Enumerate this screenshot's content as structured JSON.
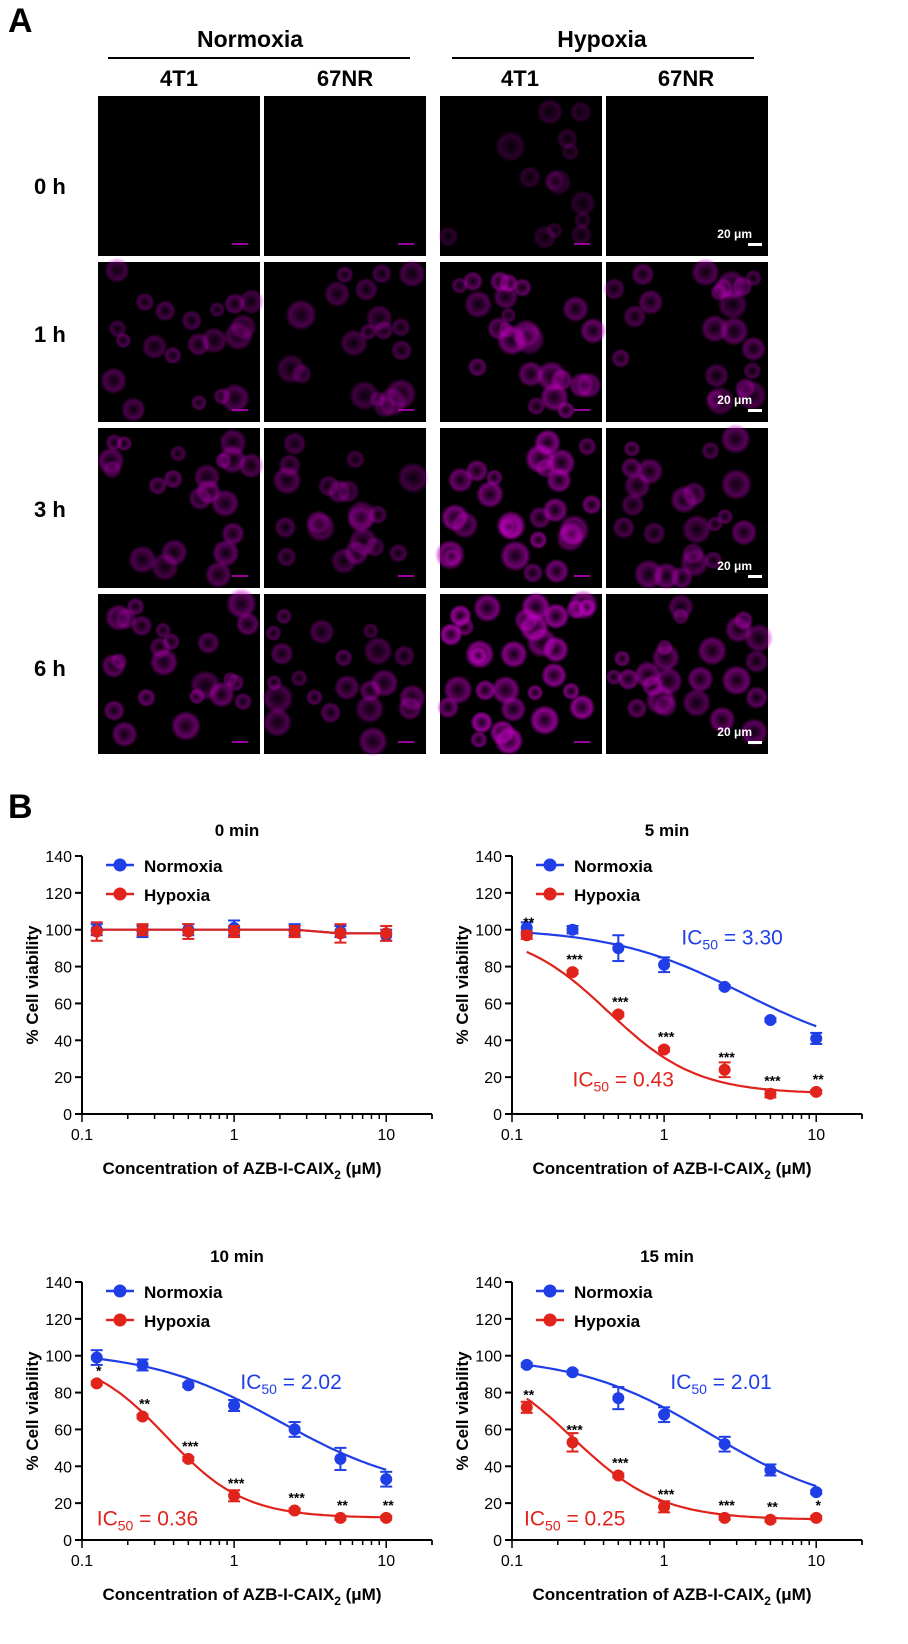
{
  "panel_a": {
    "letter": "A",
    "conditions": [
      "Normoxia",
      "Hypoxia"
    ],
    "cell_lines": [
      "4T1",
      "67NR",
      "4T1",
      "67NR"
    ],
    "times": [
      "0 h",
      "1 h",
      "3 h",
      "6 h"
    ],
    "scale_bar": "20 μm",
    "stain_color": "#c000c0",
    "intensity": [
      [
        0.0,
        0.0,
        0.02,
        0.0
      ],
      [
        0.35,
        0.3,
        0.6,
        0.45
      ],
      [
        0.45,
        0.35,
        0.8,
        0.5
      ],
      [
        0.55,
        0.45,
        1.0,
        0.6
      ]
    ]
  },
  "panel_b": {
    "letter": "B",
    "colors": {
      "normoxia": "#1f3ee6",
      "hypoxia": "#e0241c",
      "axis": "#000000"
    }
  },
  "chart_data": [
    {
      "type": "scatter",
      "title": "0 min",
      "xlabel": "Concentration of AZB-I-CAIX",
      "xlabel_sub": "2",
      "xlabel_unit": " (μM)",
      "ylabel": "% Cell viability",
      "xscale": "log",
      "xlim": [
        0.1,
        20
      ],
      "ylim": [
        0,
        140
      ],
      "xticks": [
        "0.1",
        "1",
        "10"
      ],
      "yticks": [
        0,
        20,
        40,
        60,
        80,
        100,
        120,
        140
      ],
      "legend_position": "top-left",
      "series": [
        {
          "name": "Normoxia",
          "color": "#1f3ee6",
          "x": [
            0.125,
            0.25,
            0.5,
            1,
            2.5,
            5,
            10
          ],
          "y": [
            100,
            99,
            100,
            101,
            100,
            99,
            97
          ],
          "err": [
            3,
            3,
            3,
            4,
            3,
            3,
            3
          ],
          "curve": [
            100,
            100,
            100,
            100,
            100,
            98,
            98
          ]
        },
        {
          "name": "Hypoxia",
          "color": "#e0241c",
          "x": [
            0.125,
            0.25,
            0.5,
            1,
            2.5,
            5,
            10
          ],
          "y": [
            99,
            100,
            99,
            99,
            99,
            98,
            98
          ],
          "err": [
            5,
            3,
            4,
            3,
            3,
            5,
            4
          ],
          "curve": [
            100,
            100,
            100,
            100,
            100,
            98,
            98
          ]
        }
      ],
      "significance": [],
      "ic50_labels": []
    },
    {
      "type": "scatter",
      "title": "5 min",
      "xlabel": "Concentration of AZB-I-CAIX",
      "xlabel_sub": "2",
      "xlabel_unit": " (μM)",
      "ylabel": "% Cell viability",
      "xscale": "log",
      "xlim": [
        0.1,
        20
      ],
      "ylim": [
        0,
        140
      ],
      "xticks": [
        "0.1",
        "1",
        "10"
      ],
      "yticks": [
        0,
        20,
        40,
        60,
        80,
        100,
        120,
        140
      ],
      "legend_position": "top-left",
      "series": [
        {
          "name": "Normoxia",
          "color": "#1f3ee6",
          "x": [
            0.125,
            0.25,
            0.5,
            1,
            2.5,
            5,
            10
          ],
          "y": [
            101,
            100,
            90,
            81,
            69,
            51,
            41
          ],
          "err": [
            3,
            2,
            7,
            4,
            1,
            1,
            3
          ],
          "ic50": 3.3,
          "top": 101,
          "bottom": 30,
          "hill": 1.0
        },
        {
          "name": "Hypoxia",
          "color": "#e0241c",
          "x": [
            0.125,
            0.25,
            0.5,
            1,
            2.5,
            5,
            10
          ],
          "y": [
            97,
            77,
            54,
            35,
            24,
            11,
            12
          ],
          "err": [
            2,
            1,
            1,
            1,
            4,
            2,
            1
          ],
          "ic50": 0.43,
          "top": 100,
          "bottom": 11,
          "hill": 1.5
        }
      ],
      "significance": [
        {
          "x": 0.125,
          "label": "**"
        },
        {
          "x": 0.25,
          "label": "***"
        },
        {
          "x": 0.5,
          "label": "***"
        },
        {
          "x": 1,
          "label": "***"
        },
        {
          "x": 2.5,
          "label": "***"
        },
        {
          "x": 5,
          "label": "***"
        },
        {
          "x": 10,
          "label": "**"
        }
      ],
      "ic50_labels": [
        {
          "series": "Normoxia",
          "prefix": "IC",
          "sub": "50",
          "text": " = 3.30",
          "x": 1.3,
          "y": 92
        },
        {
          "series": "Hypoxia",
          "prefix": "IC",
          "sub": "50",
          "text": " = 0.43",
          "x": 0.25,
          "y": 15
        }
      ]
    },
    {
      "type": "scatter",
      "title": "10 min",
      "xlabel": "Concentration of AZB-I-CAIX",
      "xlabel_sub": "2",
      "xlabel_unit": " (μM)",
      "ylabel": "% Cell viability",
      "xscale": "log",
      "xlim": [
        0.1,
        20
      ],
      "ylim": [
        0,
        140
      ],
      "xticks": [
        "0.1",
        "1",
        "10"
      ],
      "yticks": [
        0,
        20,
        40,
        60,
        80,
        100,
        120,
        140
      ],
      "legend_position": "top-left",
      "series": [
        {
          "name": "Normoxia",
          "color": "#1f3ee6",
          "x": [
            0.125,
            0.25,
            0.5,
            1,
            2.5,
            5,
            10
          ],
          "y": [
            99,
            95,
            84,
            73,
            60,
            44,
            33
          ],
          "err": [
            4,
            3,
            1,
            3,
            4,
            6,
            4
          ],
          "ic50": 2.02,
          "top": 103,
          "bottom": 25,
          "hill": 1.0
        },
        {
          "name": "Hypoxia",
          "color": "#e0241c",
          "x": [
            0.125,
            0.25,
            0.5,
            1,
            2.5,
            5,
            10
          ],
          "y": [
            85,
            67,
            44,
            24,
            16,
            12,
            12
          ],
          "err": [
            1,
            1,
            1,
            3,
            1,
            1,
            1
          ],
          "ic50": 0.36,
          "top": 100,
          "bottom": 12,
          "hill": 1.7
        }
      ],
      "significance": [
        {
          "x": 0.125,
          "label": "*"
        },
        {
          "x": 0.25,
          "label": "**"
        },
        {
          "x": 0.5,
          "label": "***"
        },
        {
          "x": 1,
          "label": "***"
        },
        {
          "x": 2.5,
          "label": "***"
        },
        {
          "x": 5,
          "label": "**"
        },
        {
          "x": 10,
          "label": "**"
        }
      ],
      "ic50_labels": [
        {
          "series": "Normoxia",
          "prefix": "IC",
          "sub": "50",
          "text": " = 2.02",
          "x": 1.1,
          "y": 82
        },
        {
          "series": "Hypoxia",
          "prefix": "IC",
          "sub": "50",
          "text": " = 0.36",
          "x": 0.125,
          "y": 8
        }
      ]
    },
    {
      "type": "scatter",
      "title": "15 min",
      "xlabel": "Concentration of AZB-I-CAIX",
      "xlabel_sub": "2",
      "xlabel_unit": " (μM)",
      "ylabel": "% Cell viability",
      "xscale": "log",
      "xlim": [
        0.1,
        20
      ],
      "ylim": [
        0,
        140
      ],
      "xticks": [
        "0.1",
        "1",
        "10"
      ],
      "yticks": [
        0,
        20,
        40,
        60,
        80,
        100,
        120,
        140
      ],
      "legend_position": "top-left",
      "series": [
        {
          "name": "Normoxia",
          "color": "#1f3ee6",
          "x": [
            0.125,
            0.25,
            0.5,
            1,
            2.5,
            5,
            10
          ],
          "y": [
            95,
            91,
            77,
            68,
            52,
            38,
            26
          ],
          "err": [
            1,
            1,
            6,
            4,
            4,
            3,
            1
          ],
          "ic50": 2.01,
          "top": 100,
          "bottom": 15,
          "hill": 1.0
        },
        {
          "name": "Hypoxia",
          "color": "#e0241c",
          "x": [
            0.125,
            0.25,
            0.5,
            1,
            2.5,
            5,
            10
          ],
          "y": [
            72,
            53,
            35,
            18,
            12,
            11,
            12
          ],
          "err": [
            3,
            5,
            1,
            3,
            1,
            1,
            1
          ],
          "ic50": 0.25,
          "top": 100,
          "bottom": 11,
          "hill": 1.5
        }
      ],
      "significance": [
        {
          "x": 0.125,
          "label": "**"
        },
        {
          "x": 0.25,
          "label": "***"
        },
        {
          "x": 0.5,
          "label": "***"
        },
        {
          "x": 1,
          "label": "***"
        },
        {
          "x": 2.5,
          "label": "***"
        },
        {
          "x": 5,
          "label": "**"
        },
        {
          "x": 10,
          "label": "*"
        }
      ],
      "ic50_labels": [
        {
          "series": "Normoxia",
          "prefix": "IC",
          "sub": "50",
          "text": " = 2.01",
          "x": 1.1,
          "y": 82
        },
        {
          "series": "Hypoxia",
          "prefix": "IC",
          "sub": "50",
          "text": " = 0.25",
          "x": 0.12,
          "y": 8
        }
      ]
    }
  ]
}
